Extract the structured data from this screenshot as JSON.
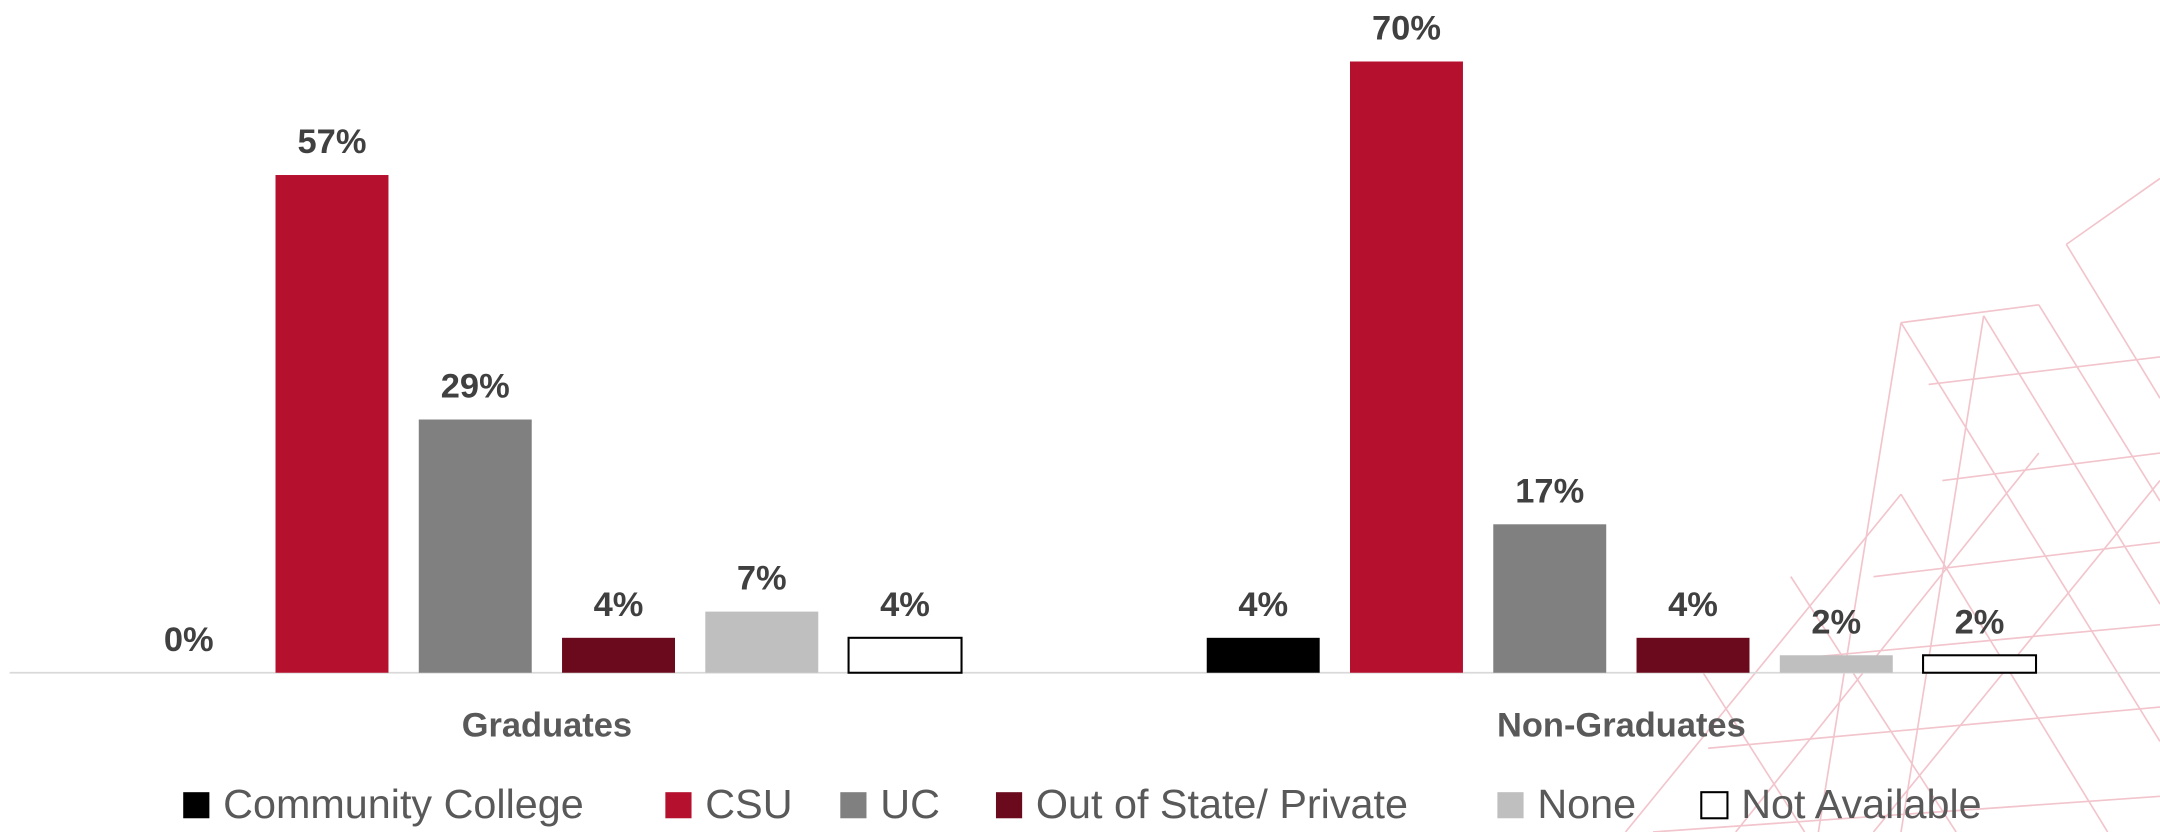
{
  "chart_data": {
    "type": "bar",
    "categories": [
      "Graduates",
      "Non-Graduates"
    ],
    "series": [
      {
        "name": "Community College",
        "color": "#000000",
        "values": [
          0,
          4
        ],
        "value_labels": [
          "0%",
          "4%"
        ]
      },
      {
        "name": "CSU",
        "color": "#b5102e",
        "values": [
          57,
          70
        ],
        "value_labels": [
          "57%",
          "70%"
        ]
      },
      {
        "name": "UC",
        "color": "#808080",
        "values": [
          29,
          17
        ],
        "value_labels": [
          "29%",
          "17%"
        ]
      },
      {
        "name": "Out of State/ Private",
        "color": "#6b0a1c",
        "values": [
          4,
          4
        ],
        "value_labels": [
          "4%",
          "4%"
        ]
      },
      {
        "name": "None",
        "color": "#bfbfbf",
        "values": [
          7,
          2
        ],
        "value_labels": [
          "7%",
          "2%"
        ]
      },
      {
        "name": "Not Available",
        "color": "#ffffff",
        "values": [
          4,
          2
        ],
        "value_labels": [
          "4%",
          "2%"
        ]
      }
    ]
  }
}
